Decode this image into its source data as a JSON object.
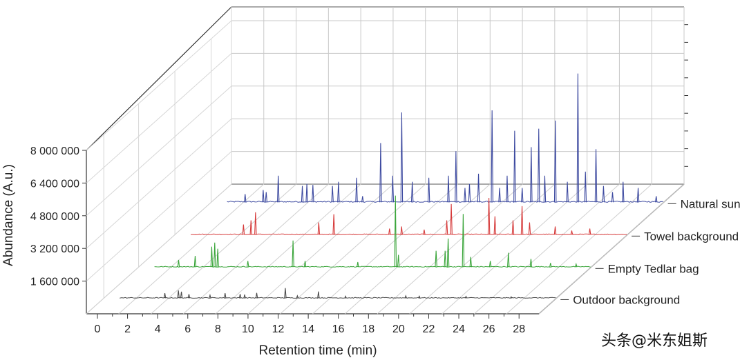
{
  "chart_data": {
    "type": "line",
    "title": "",
    "xlabel": "Retention time (min)",
    "ylabel": "Abundance (A.u.)",
    "xlim": [
      0,
      29
    ],
    "ylim": [
      0,
      8000000
    ],
    "x_ticks": [
      "0",
      "2",
      "4",
      "6",
      "8",
      "10",
      "12",
      "14",
      "16",
      "18",
      "20",
      "22",
      "24",
      "26",
      "28"
    ],
    "y_ticks": [
      "1 600 000",
      "3 200 000",
      "4 800 000",
      "6 400 000",
      "8 000 000"
    ],
    "y_tick_values": [
      1600000,
      3200000,
      4800000,
      6400000,
      8000000
    ],
    "grid": true,
    "series": [
      {
        "name": "Outdoor background",
        "color": "#4a4a4a",
        "peaks": [
          [
            3.0,
            250000
          ],
          [
            3.9,
            380000
          ],
          [
            4.1,
            320000
          ],
          [
            4.6,
            200000
          ],
          [
            6.0,
            150000
          ],
          [
            7.0,
            250000
          ],
          [
            8.0,
            200000
          ],
          [
            8.3,
            180000
          ],
          [
            9.1,
            260000
          ],
          [
            11.0,
            500000
          ],
          [
            11.8,
            120000
          ],
          [
            13.2,
            330000
          ],
          [
            15.0,
            100000
          ],
          [
            19.0,
            120000
          ],
          [
            19.9,
            100000
          ],
          [
            23.0,
            90000
          ],
          [
            26.0,
            70000
          ]
        ]
      },
      {
        "name": "Empty Tedlar bag",
        "color": "#3aa53a",
        "peaks": [
          [
            1.6,
            350000
          ],
          [
            2.7,
            550000
          ],
          [
            3.8,
            1000000
          ],
          [
            4.0,
            1200000
          ],
          [
            4.2,
            900000
          ],
          [
            6.2,
            300000
          ],
          [
            9.2,
            1300000
          ],
          [
            10.0,
            300000
          ],
          [
            13.5,
            250000
          ],
          [
            16.0,
            3500000
          ],
          [
            16.2,
            600000
          ],
          [
            18.7,
            800000
          ],
          [
            19.3,
            800000
          ],
          [
            19.5,
            1400000
          ],
          [
            20.5,
            2600000
          ],
          [
            21.0,
            500000
          ],
          [
            22.3,
            300000
          ],
          [
            23.5,
            700000
          ],
          [
            25.0,
            400000
          ],
          [
            26.3,
            200000
          ],
          [
            28.0,
            150000
          ]
        ]
      },
      {
        "name": "Towel background",
        "color": "#d63a3a",
        "peaks": [
          [
            3.5,
            500000
          ],
          [
            4.0,
            700000
          ],
          [
            4.3,
            1100000
          ],
          [
            8.5,
            600000
          ],
          [
            9.5,
            1000000
          ],
          [
            13.2,
            300000
          ],
          [
            14.0,
            400000
          ],
          [
            15.5,
            250000
          ],
          [
            17.0,
            700000
          ],
          [
            17.3,
            1500000
          ],
          [
            19.8,
            1800000
          ],
          [
            20.2,
            900000
          ],
          [
            21.4,
            700000
          ],
          [
            22.0,
            1400000
          ],
          [
            22.5,
            600000
          ],
          [
            24.2,
            400000
          ],
          [
            25.3,
            200000
          ],
          [
            26.5,
            300000
          ]
        ]
      },
      {
        "name": "Natural sun",
        "color": "#3d4aa0",
        "peaks": [
          [
            1.2,
            400000
          ],
          [
            2.4,
            600000
          ],
          [
            2.6,
            500000
          ],
          [
            3.4,
            1300000
          ],
          [
            5.0,
            800000
          ],
          [
            5.3,
            900000
          ],
          [
            5.7,
            850000
          ],
          [
            7.0,
            800000
          ],
          [
            7.4,
            1000000
          ],
          [
            8.6,
            1200000
          ],
          [
            9.0,
            300000
          ],
          [
            10.2,
            2900000
          ],
          [
            11.0,
            1300000
          ],
          [
            11.6,
            4400000
          ],
          [
            12.3,
            1000000
          ],
          [
            13.4,
            1200000
          ],
          [
            14.7,
            1300000
          ],
          [
            15.2,
            2500000
          ],
          [
            15.8,
            700000
          ],
          [
            16.1,
            900000
          ],
          [
            16.7,
            1400000
          ],
          [
            17.6,
            4500000
          ],
          [
            18.1,
            700000
          ],
          [
            18.6,
            1300000
          ],
          [
            19.1,
            3500000
          ],
          [
            19.6,
            700000
          ],
          [
            20.2,
            2700000
          ],
          [
            20.7,
            3600000
          ],
          [
            21.1,
            1300000
          ],
          [
            21.8,
            4000000
          ],
          [
            22.6,
            1000000
          ],
          [
            23.3,
            6300000
          ],
          [
            23.8,
            1500000
          ],
          [
            24.5,
            2600000
          ],
          [
            25.0,
            800000
          ],
          [
            25.6,
            500000
          ],
          [
            26.3,
            1000000
          ],
          [
            27.3,
            700000
          ],
          [
            28.5,
            300000
          ]
        ]
      }
    ]
  },
  "watermark": "头条@米东姐斯"
}
